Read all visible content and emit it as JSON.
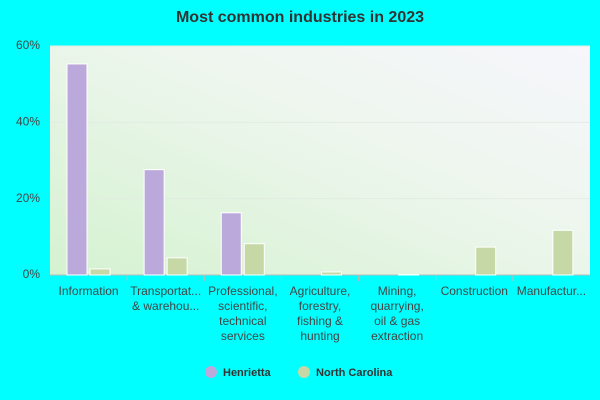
{
  "chart_data": {
    "type": "bar",
    "title": "Most common industries in 2023",
    "categories": [
      "Information",
      "Transportat...\n& warehou...",
      "Professional,\nscientific,\ntechnical\nservices",
      "Agriculture,\nforestry,\nfishing &\nhunting",
      "Mining,\nquarrying,\noil & gas\nextraction",
      "Construction",
      "Manufactur..."
    ],
    "series": [
      {
        "name": "Henrietta",
        "color": "#bca9db",
        "values": [
          55.3,
          27.6,
          16.3,
          0,
          0,
          0,
          0
        ]
      },
      {
        "name": "North Carolina",
        "color": "#c5d8a6",
        "values": [
          1.6,
          4.5,
          8.2,
          0.8,
          0.1,
          7.3,
          11.7
        ]
      }
    ],
    "ylim": [
      0,
      60
    ],
    "yticks": [
      {
        "value": 0,
        "label": "0%"
      },
      {
        "value": 20,
        "label": "20%"
      },
      {
        "value": 40,
        "label": "40%"
      },
      {
        "value": 60,
        "label": "60%"
      }
    ],
    "grid": true
  }
}
